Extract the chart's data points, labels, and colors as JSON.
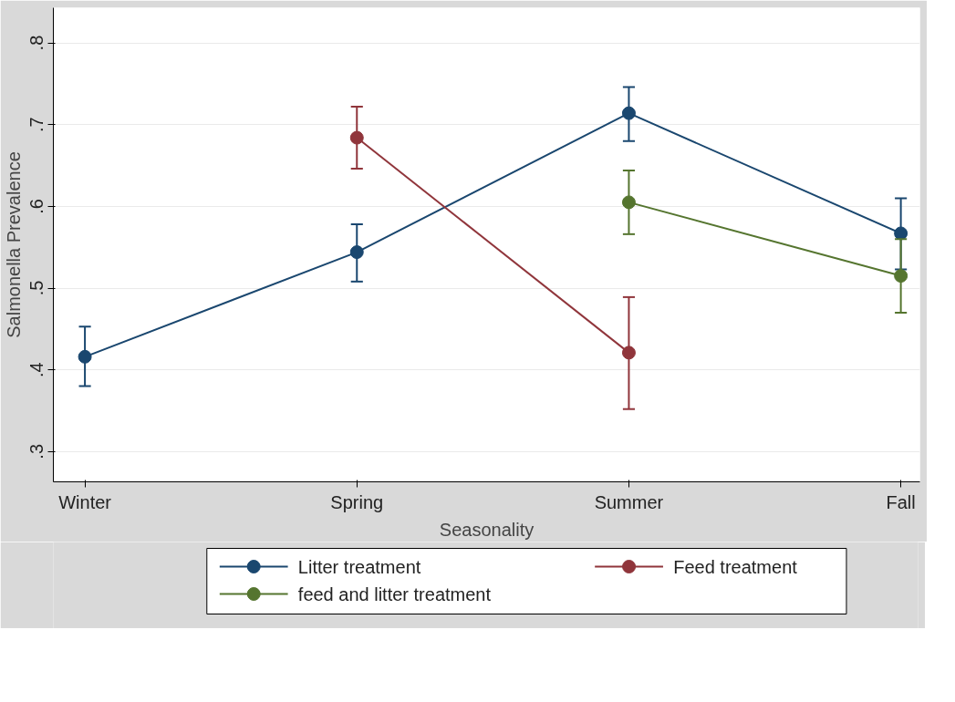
{
  "chart_data": {
    "type": "line",
    "xlabel": "Seasonality",
    "ylabel": "Salmonella Prevalence",
    "categories": [
      "Winter",
      "Spring",
      "Summer",
      "Fall"
    ],
    "series": [
      {
        "name": "Litter treatment",
        "color": "#1a476f",
        "values": [
          0.416,
          0.544,
          0.714,
          0.567
        ],
        "errors": [
          [
            0.38,
            0.453
          ],
          [
            0.508,
            0.578
          ],
          [
            0.68,
            0.746
          ],
          [
            0.523,
            0.61
          ]
        ]
      },
      {
        "name": "Feed treatment",
        "color": "#90353b",
        "values": [
          null,
          0.684,
          0.421,
          null
        ],
        "errors": [
          null,
          [
            0.646,
            0.722
          ],
          [
            0.352,
            0.489
          ],
          null
        ]
      },
      {
        "name": "feed and litter treatment",
        "color": "#55752f",
        "values": [
          null,
          null,
          0.605,
          0.515
        ],
        "errors": [
          null,
          null,
          [
            0.566,
            0.644
          ],
          [
            0.47,
            0.56
          ]
        ]
      }
    ],
    "ylim": [
      0.263,
      0.843
    ],
    "yticks": [
      {
        "value": 0.3,
        "label": ".3"
      },
      {
        "value": 0.4,
        "label": ".4"
      },
      {
        "value": 0.5,
        "label": ".5"
      },
      {
        "value": 0.6,
        "label": ".6"
      },
      {
        "value": 0.7,
        "label": ".7"
      },
      {
        "value": 0.8,
        "label": ".8"
      }
    ],
    "grid": "y",
    "legend": "bottom",
    "marker": "circle",
    "line_style": "solid"
  }
}
